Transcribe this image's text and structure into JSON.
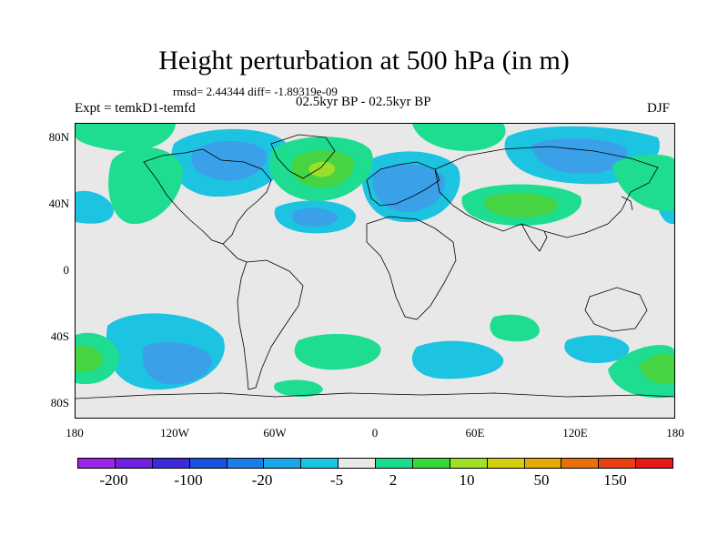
{
  "title": "Height perturbation at 500 hPa (in m)",
  "stats": "rmsd= 2.44344  diff= -1.89319e-09",
  "experiment": "Expt = temkD1-temfd",
  "period": "02.5kyr BP - 02.5kyr BP",
  "season": "DJF",
  "map": {
    "lat_ticks": [
      "80N",
      "40N",
      "0",
      "40S",
      "80S"
    ],
    "lon_ticks": [
      "180",
      "120W",
      "60W",
      "0",
      "60E",
      "120E",
      "180"
    ],
    "land_fill": "#e8e8e8"
  },
  "colorbar": {
    "colors": [
      "#9b24e6",
      "#7020e0",
      "#3c2ad8",
      "#1a52e0",
      "#1a7ee8",
      "#1aa6e8",
      "#18c6e4",
      "#e8e8e8",
      "#18dc8c",
      "#38d838",
      "#a0e028",
      "#d4d010",
      "#e8a808",
      "#e87008",
      "#e84010",
      "#e81818"
    ],
    "labels": [
      "-200",
      "-100",
      "-20",
      "-5",
      "2",
      "10",
      "50",
      "150"
    ]
  },
  "anomaly_colors": {
    "strong_negative": "#3aa0e8",
    "negative": "#1cc4e2",
    "positive": "#1edc90",
    "strong_positive": "#46d442",
    "peak_positive": "#9ae02a"
  }
}
